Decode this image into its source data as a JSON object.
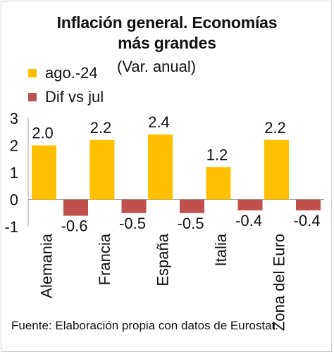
{
  "title_line1": "Inflación general. Economías",
  "title_line2": "más grandes",
  "subtitle": "(Var. anual)",
  "source": "Fuente: Elaboración propia con datos de Eurostat.",
  "colors": {
    "series1": "#FFC000",
    "series2": "#C0504D",
    "axis": "#a6a6a6"
  },
  "chart_data": {
    "type": "bar",
    "categories": [
      "Alemania",
      "Francia",
      "España",
      "Italia",
      "Zona del Euro"
    ],
    "series": [
      {
        "name": "ago.-24",
        "values": [
          2.0,
          2.2,
          2.4,
          1.2,
          2.2
        ],
        "labels": [
          "2.0",
          "2.2",
          "2.4",
          "1.2",
          "2.2"
        ]
      },
      {
        "name": "Dif vs jul",
        "values": [
          -0.6,
          -0.5,
          -0.5,
          -0.4,
          -0.4
        ],
        "labels": [
          "-0.6",
          "-0.5",
          "-0.5",
          "-0.4",
          "-0.4"
        ]
      }
    ],
    "yticks": [
      "3",
      "2",
      "1",
      "0",
      "-1"
    ],
    "ylim": [
      -1,
      3
    ],
    "legend": "top-left"
  }
}
